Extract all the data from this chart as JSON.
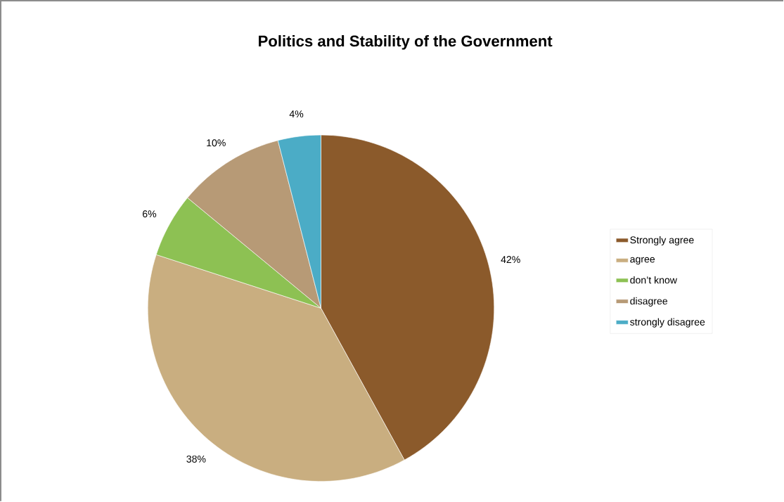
{
  "chart_data": {
    "type": "pie",
    "title": "Politics and Stability of the Government",
    "categories": [
      "Strongly agree",
      "agree",
      "don’t know",
      "disagree",
      "strongly disagree"
    ],
    "values": [
      42,
      38,
      6,
      10,
      4
    ],
    "value_labels": [
      "42%",
      "38%",
      "6%",
      "10%",
      "4%"
    ],
    "colors": [
      "#8b5a2b",
      "#c9ae80",
      "#8dc153",
      "#b79a76",
      "#4bacc6"
    ],
    "legend": "right"
  }
}
